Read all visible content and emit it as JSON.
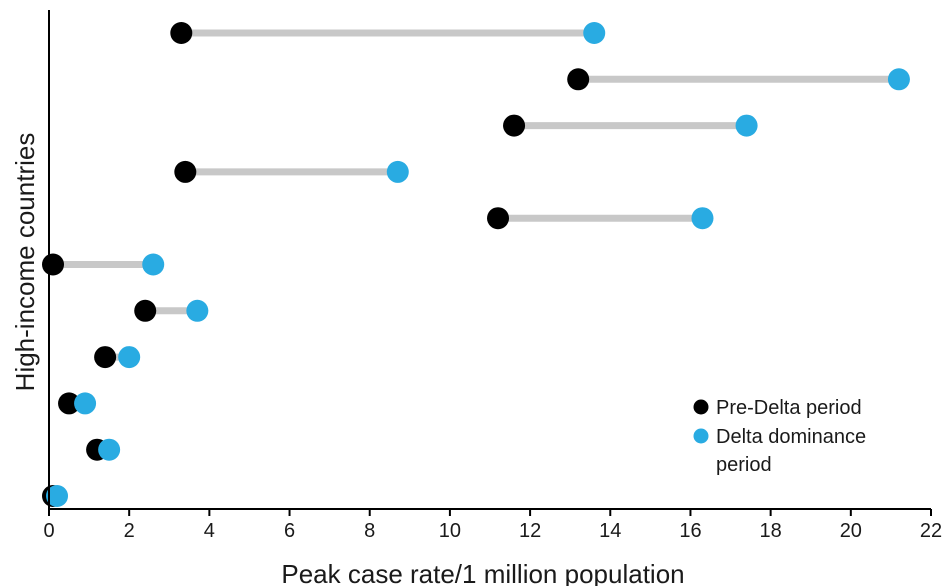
{
  "chart_data": {
    "type": "dumbbell",
    "title": "",
    "xlabel": "Peak case rate/1 million population",
    "ylabel": "High-income countries",
    "xlim": [
      0,
      22
    ],
    "xticks": [
      "0",
      "2",
      "4",
      "6",
      "8",
      "10",
      "12",
      "14",
      "16",
      "18",
      "20",
      "22"
    ],
    "grid": false,
    "legend_position": "bottom-right",
    "series": [
      {
        "name": "Pre-Delta period",
        "color": "#000000"
      },
      {
        "name": "Delta dominance period",
        "color": "#29abe2"
      }
    ],
    "rows": [
      {
        "pre_delta": 3.3,
        "delta": 13.6
      },
      {
        "pre_delta": 13.2,
        "delta": 21.2
      },
      {
        "pre_delta": 11.6,
        "delta": 17.4
      },
      {
        "pre_delta": 3.4,
        "delta": 8.7
      },
      {
        "pre_delta": 11.2,
        "delta": 16.3
      },
      {
        "pre_delta": 0.1,
        "delta": 2.6
      },
      {
        "pre_delta": 2.4,
        "delta": 3.7
      },
      {
        "pre_delta": 1.4,
        "delta": 2.0
      },
      {
        "pre_delta": 0.5,
        "delta": 0.9
      },
      {
        "pre_delta": 1.2,
        "delta": 1.5
      },
      {
        "pre_delta": 0.1,
        "delta": 0.2
      }
    ],
    "connector_color": "#c8c8c8",
    "legend_lines": [
      [
        "Pre-Delta period"
      ],
      [
        "Delta dominance",
        "period"
      ]
    ]
  }
}
